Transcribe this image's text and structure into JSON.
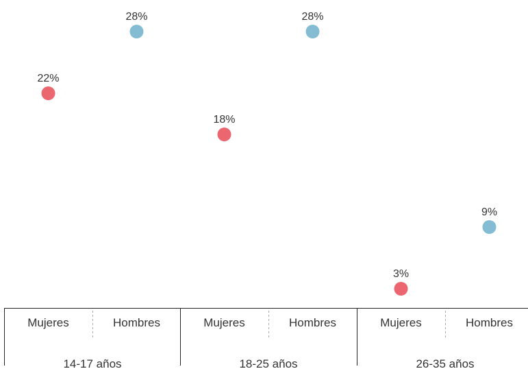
{
  "chart_data": {
    "type": "scatter",
    "unit": "%",
    "ylim": [
      0,
      30
    ],
    "grid": false,
    "colors": {
      "Mujeres": "#ec6670",
      "Hombres": "#83bcd3"
    },
    "groups": [
      {
        "label": "14-17 años",
        "points": [
          {
            "category": "Mujeres",
            "value": 22,
            "label": "22%"
          },
          {
            "category": "Hombres",
            "value": 28,
            "label": "28%"
          }
        ]
      },
      {
        "label": "18-25 años",
        "points": [
          {
            "category": "Mujeres",
            "value": 18,
            "label": "18%"
          },
          {
            "category": "Hombres",
            "value": 28,
            "label": "28%"
          }
        ]
      },
      {
        "label": "26-35 años",
        "points": [
          {
            "category": "Mujeres",
            "value": 3,
            "label": "3%"
          },
          {
            "category": "Hombres",
            "value": 9,
            "label": "9%"
          }
        ]
      }
    ]
  }
}
